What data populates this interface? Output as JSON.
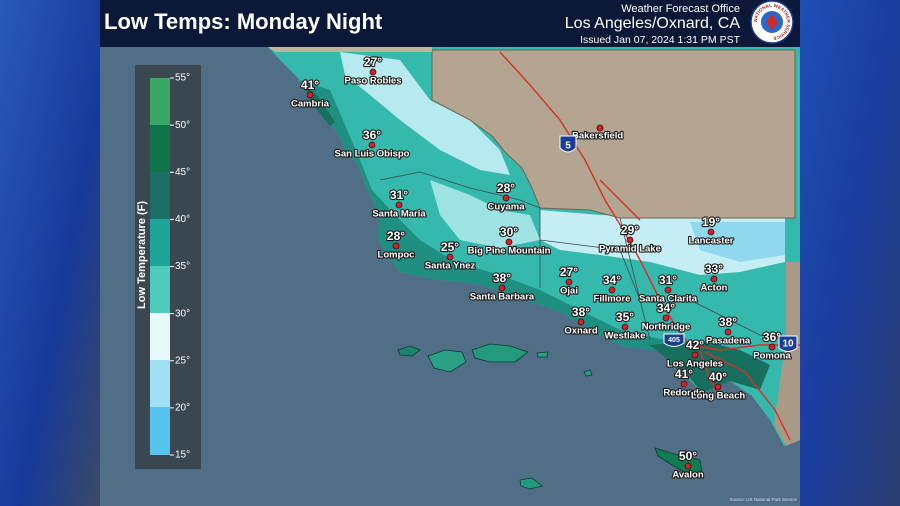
{
  "header": {
    "title": "Low Temps: Monday Night",
    "office": "Weather Forecast Office",
    "location": "Los Angeles/Oxnard, CA",
    "issued": "Issued Jan 07, 2024 1:31 PM PST",
    "logo_text": "NATIONAL WEATHER SERVICE"
  },
  "legend": {
    "title": "Low Temperature (F)",
    "labels": [
      "55°",
      "50°",
      "45°",
      "40°",
      "35°",
      "30°",
      "25°",
      "20°",
      "15°"
    ]
  },
  "cities": [
    {
      "name": "Paso Robles",
      "temp": "27°"
    },
    {
      "name": "Cambria",
      "temp": "41°"
    },
    {
      "name": "San Luis Obispo",
      "temp": "36°"
    },
    {
      "name": "Bakersfield"
    },
    {
      "name": "Santa Maria",
      "temp": "31°"
    },
    {
      "name": "Cuyama",
      "temp": "28°"
    },
    {
      "name": "Lompoc",
      "temp": "28°"
    },
    {
      "name": "Santa Ynez",
      "temp": "25°"
    },
    {
      "name": "Big Pine Mountain",
      "temp": "30°"
    },
    {
      "name": "Pyramid Lake",
      "temp": "29°"
    },
    {
      "name": "Lancaster",
      "temp": "19°"
    },
    {
      "name": "Santa Barbara",
      "temp": "38°"
    },
    {
      "name": "Ojai",
      "temp": "27°"
    },
    {
      "name": "Fillmore",
      "temp": "34°"
    },
    {
      "name": "Santa Clarita",
      "temp": "31°"
    },
    {
      "name": "Acton",
      "temp": "33°"
    },
    {
      "name": "Oxnard",
      "temp": "38°"
    },
    {
      "name": "Westlake",
      "temp": "35°"
    },
    {
      "name": "Northridge",
      "temp": "34°"
    },
    {
      "name": "Pasadena",
      "temp": "38°"
    },
    {
      "name": "Pomona",
      "temp": "36°"
    },
    {
      "name": "Los Angeles",
      "temp": "42°"
    },
    {
      "name": "Redondo",
      "temp": "41°"
    },
    {
      "name": "Long Beach",
      "temp": "40°"
    },
    {
      "name": "Avalon",
      "temp": "50°"
    }
  ],
  "highways": [
    "5",
    "405",
    "10"
  ],
  "source": "Source: US National Park Service"
}
